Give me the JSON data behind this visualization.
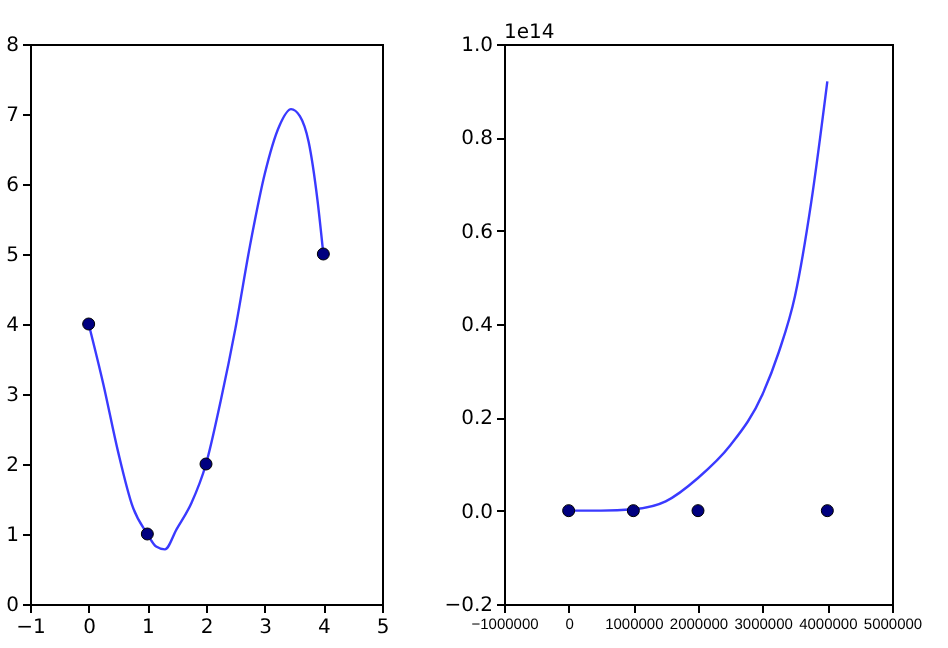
{
  "chart_data": [
    {
      "type": "line",
      "xlim": [
        -1,
        5
      ],
      "ylim": [
        0,
        8
      ],
      "xticks": [
        {
          "value": -1,
          "label": "−1"
        },
        0,
        1,
        2,
        3,
        4,
        5
      ],
      "yticks": [
        0,
        1,
        2,
        3,
        4,
        5,
        6,
        7,
        8
      ],
      "series": [
        {
          "type": "line",
          "color": "#3a3aff",
          "x": [
            0,
            0.25,
            0.5,
            0.75,
            1,
            1.15,
            1.3,
            1.5,
            1.75,
            2,
            2.25,
            2.5,
            2.75,
            3,
            3.25,
            3.45,
            3.6,
            3.75,
            3.9,
            4
          ],
          "values": [
            4,
            3.14,
            2.18,
            1.39,
            1,
            0.82,
            0.78,
            1.07,
            1.44,
            2,
            2.9,
            3.93,
            5.12,
            6.14,
            6.83,
            7.07,
            6.97,
            6.6,
            5.77,
            5
          ]
        },
        {
          "type": "scatter",
          "color": "#00007f",
          "x": [
            0,
            1,
            2,
            4
          ],
          "values": [
            4,
            1,
            2,
            5
          ]
        }
      ]
    },
    {
      "type": "line",
      "xlim": [
        -1000000,
        5000000
      ],
      "ylim": [
        -0.2,
        1.0
      ],
      "xticks": [
        {
          "value": -1000000,
          "label": "−1000000"
        },
        0,
        1000000,
        2000000,
        3000000,
        4000000,
        5000000
      ],
      "yticks": [
        {
          "value": -0.2,
          "label": "−0.2"
        },
        {
          "value": 0,
          "label": "0.0"
        },
        {
          "value": 0.2,
          "label": "0.2"
        },
        {
          "value": 0.4,
          "label": "0.4"
        },
        {
          "value": 0.6,
          "label": "0.6"
        },
        {
          "value": 0.8,
          "label": "0.8"
        },
        {
          "value": 1.0,
          "label": "1.0"
        }
      ],
      "annotations": [
        "1e14"
      ],
      "series": [
        {
          "type": "line",
          "color": "#3a3aff",
          "x": [
            0,
            500000,
            1000000,
            1500000,
            2000000,
            2500000,
            3000000,
            3250000,
            3500000,
            3750000,
            4000000
          ],
          "values": [
            0,
            0,
            0.003,
            0.02,
            0.07,
            0.14,
            0.25,
            0.34,
            0.46,
            0.66,
            0.92
          ]
        },
        {
          "type": "scatter",
          "color": "#00007f",
          "x": [
            0,
            1000000,
            2000000,
            4000000
          ],
          "values": [
            0,
            0,
            0,
            0
          ]
        }
      ]
    }
  ]
}
